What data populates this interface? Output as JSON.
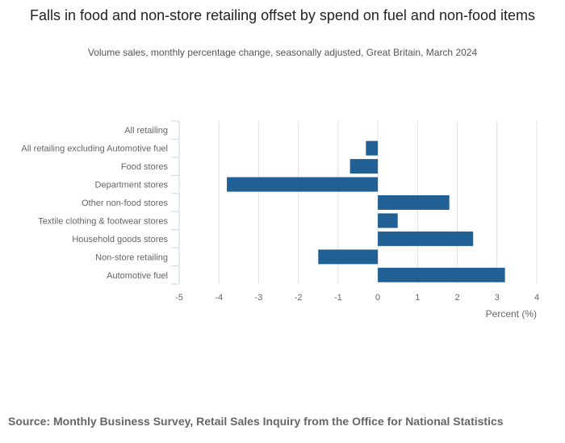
{
  "chart_data": {
    "type": "bar",
    "orientation": "horizontal",
    "title": "Falls in food and non-store retailing offset by spend on fuel and non-food items",
    "subtitle": "Volume sales, monthly percentage change, seasonally adjusted, Great Britain, March 2024",
    "categories": [
      "All retailing",
      "All retailing excluding Automotive fuel",
      "Food stores",
      "Department stores",
      "Other non-food stores",
      "Textile clothing & footwear stores",
      "Household goods stores",
      "Non-store retailing",
      "Automotive fuel"
    ],
    "values": [
      0,
      -0.3,
      -0.7,
      -3.8,
      1.8,
      0.5,
      2.4,
      -1.5,
      3.2
    ],
    "xlabel": "Percent (%)",
    "ylabel": "",
    "xlim": [
      -5,
      4
    ],
    "xticks": [
      "-5",
      "-4",
      "-3",
      "-2",
      "-1",
      "0",
      "1",
      "2",
      "3",
      "4"
    ],
    "grid": true,
    "bar_color": "#206095"
  },
  "source": "Source: Monthly Business Survey, Retail Sales Inquiry from the Office for National Statistics"
}
